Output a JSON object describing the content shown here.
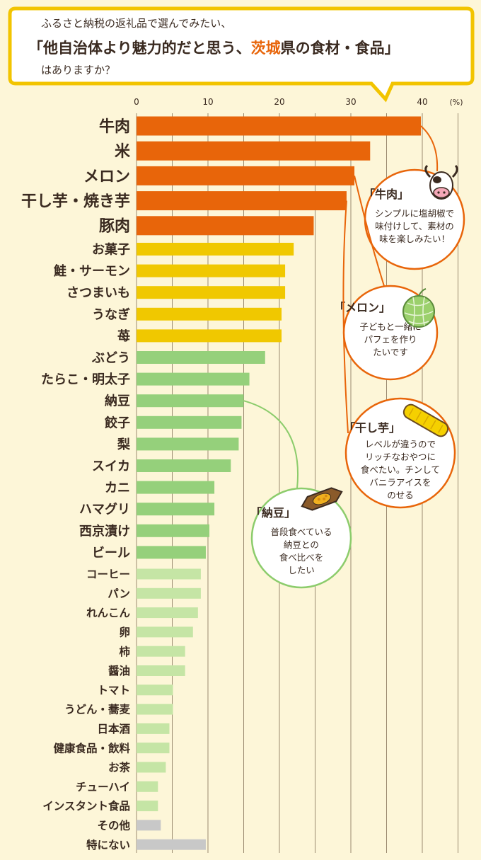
{
  "question": {
    "line1": "ふるさと納税の返礼品で選んでみたい、",
    "line2_pre": "「他自治体より魅力的だと思う、",
    "line2_highlight": "茨城",
    "line2_post": "県の食材・食品」",
    "line3": "はありますか？"
  },
  "colors": {
    "tier1": "#e8650a",
    "tier2": "#f0c800",
    "tier3": "#95d07b",
    "tier4": "#c5e5a5",
    "tier5": "#c8c8c8",
    "accent": "#e8650a",
    "green_accent": "#8ccc6c"
  },
  "chart_data": {
    "type": "bar",
    "orientation": "horizontal",
    "unit": "(%)",
    "xlim": [
      0,
      45
    ],
    "ticks": [
      0,
      10,
      20,
      30,
      40
    ],
    "grid": true,
    "categories": [
      "牛肉",
      "米",
      "メロン",
      "干し芋・焼き芋",
      "豚肉",
      "お菓子",
      "鮭・サーモン",
      "さつまいも",
      "うなぎ",
      "苺",
      "ぶどう",
      "たらこ・明太子",
      "納豆",
      "餃子",
      "梨",
      "スイカ",
      "カニ",
      "ハマグリ",
      "西京漬け",
      "ビール",
      "コーヒー",
      "パン",
      "れんこん",
      "卵",
      "柿",
      "醤油",
      "トマト",
      "うどん・蕎麦",
      "日本酒",
      "健康食品・飲料",
      "お茶",
      "チューハイ",
      "インスタント食品",
      "その他",
      "特にない"
    ],
    "values": [
      39.8,
      32.7,
      30.5,
      29.4,
      24.8,
      22.0,
      20.8,
      20.8,
      20.3,
      20.3,
      18.0,
      15.8,
      15.0,
      14.7,
      14.3,
      13.2,
      10.9,
      10.9,
      10.2,
      9.7,
      9.0,
      9.0,
      8.6,
      7.9,
      6.8,
      6.8,
      5.1,
      5.1,
      4.6,
      4.6,
      4.1,
      3.0,
      3.0,
      3.4,
      9.7
    ],
    "tiers": [
      1,
      1,
      1,
      1,
      1,
      2,
      2,
      2,
      2,
      2,
      3,
      3,
      3,
      3,
      3,
      3,
      3,
      3,
      3,
      3,
      4,
      4,
      4,
      4,
      4,
      4,
      4,
      4,
      4,
      4,
      4,
      4,
      4,
      5,
      5
    ]
  },
  "callouts": [
    {
      "target": "牛肉",
      "title": "「牛肉」",
      "lines": [
        "シンプルに塩胡椒で",
        "味付けして、素材の",
        "味を楽しみたい！"
      ],
      "icon": "cow-icon"
    },
    {
      "target": "メロン",
      "title": "「メロン」",
      "lines": [
        "子どもと一緒に",
        "パフェを作り",
        "たいです"
      ],
      "icon": "melon-icon"
    },
    {
      "target": "干し芋・焼き芋",
      "title": "「干し芋」",
      "lines": [
        "レベルが違うので",
        "リッチなおやつに",
        "食べたい。チンして",
        "バニラアイスを",
        "のせる"
      ],
      "icon": "dried-sweet-potato-icon"
    },
    {
      "target": "納豆",
      "title": "「納豆」",
      "lines": [
        "普段食べている",
        "納豆との",
        "食べ比べを",
        "したい"
      ],
      "icon": "natto-icon"
    }
  ]
}
